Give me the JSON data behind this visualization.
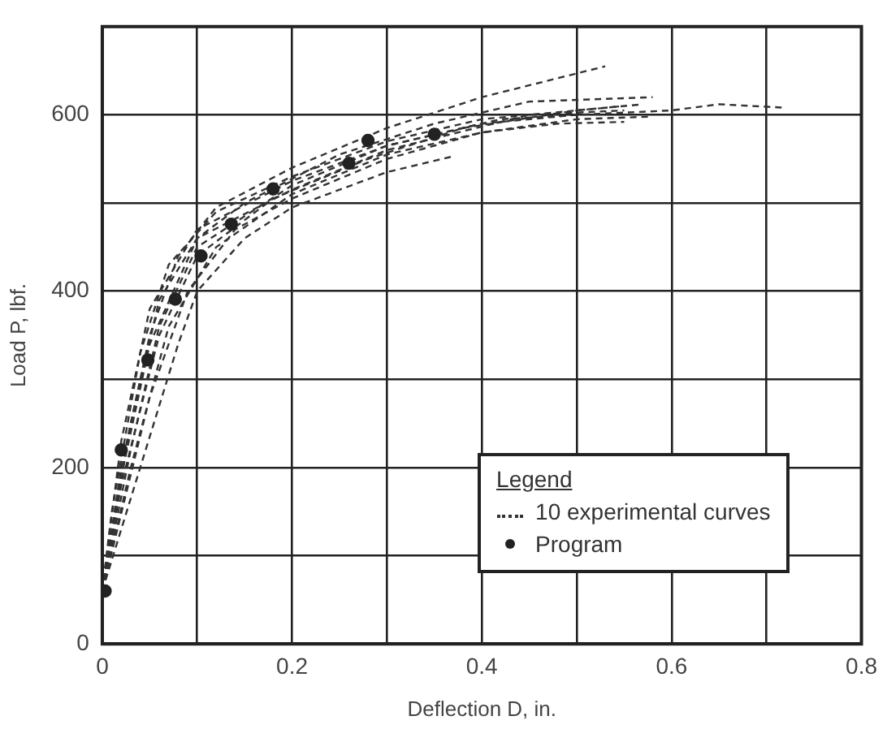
{
  "chart_data": {
    "type": "line",
    "xlabel": "Deflection D, in.",
    "ylabel": "Load P, lbf.",
    "legend_title": "Legend",
    "legend": "bottom right",
    "grid": true,
    "line_style": "dashed",
    "marker": "none",
    "xlim": [
      0,
      0.8
    ],
    "xticks": [
      0,
      {
        "value": 0.1,
        "label": null
      },
      0.2,
      {
        "value": 0.3,
        "label": null
      },
      0.4,
      {
        "value": 0.5,
        "label": null
      },
      0.6,
      {
        "value": 0.7,
        "label": null
      },
      0.8
    ],
    "ylim": [
      0,
      700
    ],
    "yticks": [
      0,
      {
        "value": 100,
        "label": null
      },
      200,
      {
        "value": 300,
        "label": null
      },
      400,
      {
        "value": 500,
        "label": null
      },
      600,
      {
        "value": 700,
        "label": null
      }
    ],
    "series": [
      {
        "name": "10 experimental curves",
        "color": "#333333",
        "x": [
          0,
          0.02,
          0.05,
          0.08,
          0.12,
          0.2,
          0.3,
          0.4,
          0.53
        ],
        "values": [
          60,
          200,
          350,
          440,
          495,
          540,
          585,
          620,
          655
        ]
      },
      {
        "color": "#333333",
        "x": [
          0,
          0.02,
          0.05,
          0.1,
          0.15,
          0.25,
          0.35,
          0.45,
          0.58
        ],
        "values": [
          60,
          190,
          340,
          460,
          500,
          555,
          590,
          615,
          620
        ]
      },
      {
        "color": "#333333",
        "x": [
          0,
          0.03,
          0.06,
          0.1,
          0.2,
          0.3,
          0.4,
          0.5,
          0.6,
          0.65,
          0.72
        ],
        "values": [
          60,
          220,
          360,
          450,
          520,
          565,
          590,
          600,
          605,
          612,
          608
        ]
      },
      {
        "color": "#333333",
        "x": [
          0,
          0.03,
          0.07,
          0.12,
          0.2,
          0.3,
          0.4,
          0.5,
          0.58
        ],
        "values": [
          60,
          200,
          360,
          450,
          510,
          555,
          580,
          595,
          598
        ]
      },
      {
        "color": "#333333",
        "x": [
          0,
          0.04,
          0.08,
          0.1,
          0.15,
          0.2,
          0.3,
          0.37
        ],
        "values": [
          60,
          200,
          340,
          400,
          460,
          495,
          535,
          553
        ]
      },
      {
        "color": "#333333",
        "x": [
          0,
          0.01,
          0.04,
          0.07,
          0.12,
          0.2,
          0.3,
          0.4,
          0.55
        ],
        "values": [
          60,
          150,
          330,
          430,
          490,
          530,
          570,
          595,
          610
        ]
      },
      {
        "color": "#333333",
        "x": [
          0,
          0.02,
          0.05,
          0.1,
          0.2,
          0.3,
          0.42,
          0.5
        ],
        "values": [
          60,
          230,
          380,
          470,
          525,
          565,
          595,
          600
        ]
      },
      {
        "color": "#333333",
        "x": [
          0,
          0.03,
          0.06,
          0.1,
          0.2,
          0.3,
          0.45,
          0.55
        ],
        "values": [
          60,
          250,
          390,
          460,
          515,
          560,
          600,
          605
        ]
      },
      {
        "color": "#333333",
        "x": [
          0,
          0.05,
          0.09,
          0.14,
          0.2,
          0.3,
          0.4,
          0.48,
          0.55
        ],
        "values": [
          60,
          280,
          400,
          470,
          505,
          550,
          580,
          590,
          592
        ]
      },
      {
        "color": "#333333",
        "x": [
          0,
          0.02,
          0.06,
          0.1,
          0.18,
          0.28,
          0.38,
          0.5,
          0.57
        ],
        "values": [
          60,
          180,
          350,
          440,
          505,
          550,
          585,
          605,
          612
        ]
      },
      {
        "name": "Program",
        "type": "scatter",
        "marker": "circle",
        "color": "#222222",
        "x": [
          0.003,
          0.02,
          0.048,
          0.077,
          0.104,
          0.136,
          0.18,
          0.26,
          0.28,
          0.35
        ],
        "values": [
          60,
          220,
          322,
          391,
          440,
          476,
          516,
          545,
          571,
          578
        ]
      }
    ]
  }
}
